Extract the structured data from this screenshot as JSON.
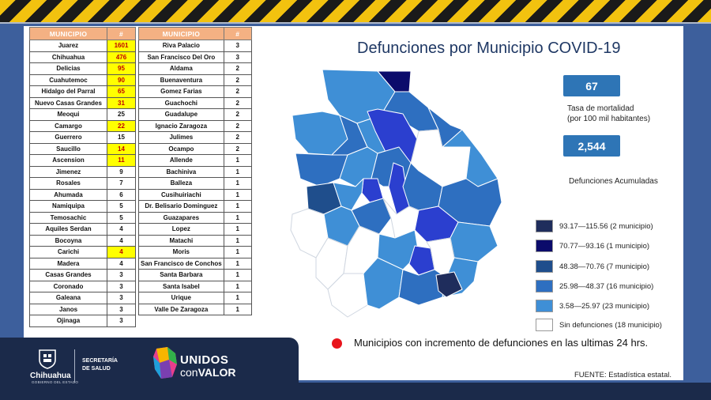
{
  "title": "Defunciones por Municipio COVID-19",
  "table_headers": {
    "name": "MUNICIPIO",
    "num": "#"
  },
  "left_table": [
    {
      "name": "Juarez",
      "value": "1601",
      "highlight": true
    },
    {
      "name": "Chihuahua",
      "value": "476",
      "highlight": true
    },
    {
      "name": "Delicias",
      "value": "95",
      "highlight": true
    },
    {
      "name": "Cuahutemoc",
      "value": "90",
      "highlight": true
    },
    {
      "name": "Hidalgo del Parral",
      "value": "65",
      "highlight": true
    },
    {
      "name": "Nuevo Casas Grandes",
      "value": "31",
      "highlight": true
    },
    {
      "name": "Meoqui",
      "value": "25",
      "highlight": false
    },
    {
      "name": "Camargo",
      "value": "22",
      "highlight": true
    },
    {
      "name": "Guerrero",
      "value": "15",
      "highlight": false
    },
    {
      "name": "Saucillo",
      "value": "14",
      "highlight": true
    },
    {
      "name": "Ascension",
      "value": "11",
      "highlight": true
    },
    {
      "name": "Jimenez",
      "value": "9",
      "highlight": false
    },
    {
      "name": "Rosales",
      "value": "7",
      "highlight": false
    },
    {
      "name": "Ahumada",
      "value": "6",
      "highlight": false
    },
    {
      "name": "Namiquipa",
      "value": "5",
      "highlight": false
    },
    {
      "name": "Temosachic",
      "value": "5",
      "highlight": false
    },
    {
      "name": "Aquiles Serdan",
      "value": "4",
      "highlight": false
    },
    {
      "name": "Bocoyna",
      "value": "4",
      "highlight": false
    },
    {
      "name": "Carichi",
      "value": "4",
      "highlight": true
    },
    {
      "name": "Madera",
      "value": "4",
      "highlight": false
    },
    {
      "name": "Casas Grandes",
      "value": "3",
      "highlight": false
    },
    {
      "name": "Coronado",
      "value": "3",
      "highlight": false
    },
    {
      "name": "Galeana",
      "value": "3",
      "highlight": false
    },
    {
      "name": "Janos",
      "value": "3",
      "highlight": false
    },
    {
      "name": "Ojinaga",
      "value": "3",
      "highlight": false
    }
  ],
  "right_table": [
    {
      "name": "Riva Palacio",
      "value": "3"
    },
    {
      "name": "San Francisco Del Oro",
      "value": "3"
    },
    {
      "name": "Aldama",
      "value": "2"
    },
    {
      "name": "Buenaventura",
      "value": "2"
    },
    {
      "name": "Gomez Farias",
      "value": "2"
    },
    {
      "name": "Guachochi",
      "value": "2"
    },
    {
      "name": "Guadalupe",
      "value": "2"
    },
    {
      "name": "Ignacio Zaragoza",
      "value": "2"
    },
    {
      "name": "Julimes",
      "value": "2"
    },
    {
      "name": "Ocampo",
      "value": "2"
    },
    {
      "name": "Allende",
      "value": "1"
    },
    {
      "name": "Bachiniva",
      "value": "1"
    },
    {
      "name": "Balleza",
      "value": "1"
    },
    {
      "name": "Cusihuiriachi",
      "value": "1"
    },
    {
      "name": "Dr. Belisario Dominguez",
      "value": "1"
    },
    {
      "name": "Guazapares",
      "value": "1"
    },
    {
      "name": "Lopez",
      "value": "1"
    },
    {
      "name": "Matachi",
      "value": "1"
    },
    {
      "name": "Moris",
      "value": "1"
    },
    {
      "name": "San Francisco de Conchos",
      "value": "1"
    },
    {
      "name": "Santa Barbara",
      "value": "1"
    },
    {
      "name": "Santa Isabel",
      "value": "1"
    },
    {
      "name": "Urique",
      "value": "1"
    },
    {
      "name": "Valle De Zaragoza",
      "value": "1"
    }
  ],
  "stats": {
    "rate_value": "67",
    "rate_label_line1": "Tasa de mortalidad",
    "rate_label_line2": "(por 100 mil habitantes)",
    "total_value": "2,544",
    "total_label": "Defunciones Acumuladas"
  },
  "legend": [
    {
      "label": "93.17—115.56 (2 municipio)",
      "color": "#1f2d5c"
    },
    {
      "label": "70.77—93.16 (1 municipio)",
      "color": "#0b0b6b"
    },
    {
      "label": "48.38—70.76 (7 municipio)",
      "color": "#1f4e8c"
    },
    {
      "label": "25.98—48.37 (16 municipio)",
      "color": "#2e6fc0"
    },
    {
      "label": "3.58—25.97 (23 municipio)",
      "color": "#3f8fd6"
    },
    {
      "label": "Sin defunciones (18 municipio)",
      "color": "#ffffff"
    }
  ],
  "note": "Municipios con incremento de defunciones en las ultimas 24 hrs.",
  "source": "FUENTE:  Estadística estatal.",
  "branding": {
    "gov_name": "Chihuahua",
    "gov_sub": "GOBIERNO DEL ESTADO",
    "secretaria_line1": "SECRETARÍA",
    "secretaria_line2": "DE SALUD",
    "campaign_line1": "UNIDOS",
    "campaign_line2a": "con",
    "campaign_line2b": "VALOR"
  },
  "colors": {
    "highlight_fill": "#ffff00",
    "highlight_text": "#c00000",
    "header_fill": "#f4b183",
    "accent_blue": "#2e75b6",
    "background_navy": "#1b2a4a"
  }
}
